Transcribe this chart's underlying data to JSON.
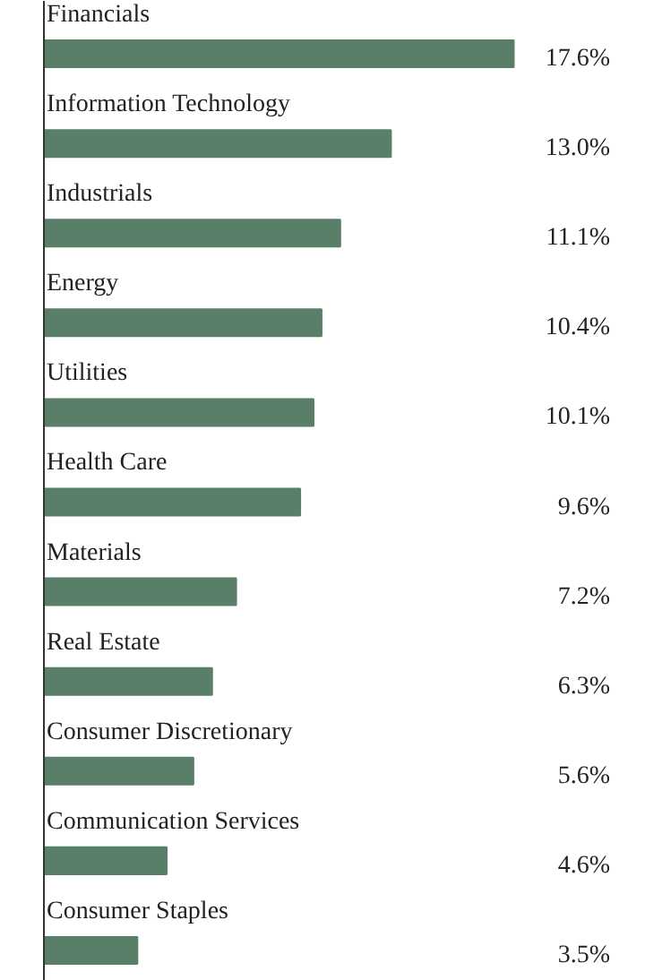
{
  "chart_data": {
    "type": "bar",
    "orientation": "horizontal",
    "color": "#5a7f69",
    "categories": [
      "Financials",
      "Information Technology",
      "Industrials",
      "Energy",
      "Utilities",
      "Health Care",
      "Materials",
      "Real Estate",
      "Consumer Discretionary",
      "Communication Services",
      "Consumer Staples"
    ],
    "values": [
      17.6,
      13.0,
      11.1,
      10.4,
      10.1,
      9.6,
      7.2,
      6.3,
      5.6,
      4.6,
      3.5
    ],
    "value_labels": [
      "17.6%",
      "13.0%",
      "11.1%",
      "10.4%",
      "10.1%",
      "9.6%",
      "7.2%",
      "6.3%",
      "5.6%",
      "4.6%",
      "3.5%"
    ]
  }
}
